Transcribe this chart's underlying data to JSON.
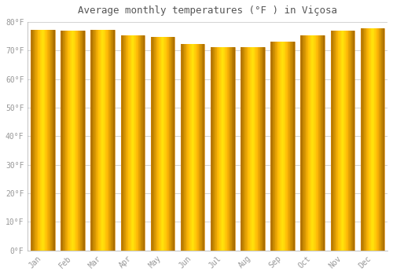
{
  "title": "Average monthly temperatures (°F ) in Viçosa",
  "months": [
    "Jan",
    "Feb",
    "Mar",
    "Apr",
    "May",
    "Jun",
    "Jul",
    "Aug",
    "Sep",
    "Oct",
    "Nov",
    "Dec"
  ],
  "values": [
    77.2,
    77.0,
    77.2,
    75.3,
    74.7,
    72.3,
    71.1,
    71.2,
    73.0,
    75.3,
    77.0,
    77.7
  ],
  "bar_color_center": "#FFB52A",
  "bar_color_edge": "#F0900A",
  "background_color": "#FFFFFF",
  "plot_bg_color": "#FFFFFF",
  "ylim": [
    0,
    80
  ],
  "ytick_step": 10,
  "grid_color": "#CCCCCC",
  "title_fontsize": 9,
  "tick_fontsize": 7,
  "tick_label_color": "#999999",
  "title_color": "#555555",
  "bar_width": 0.8
}
